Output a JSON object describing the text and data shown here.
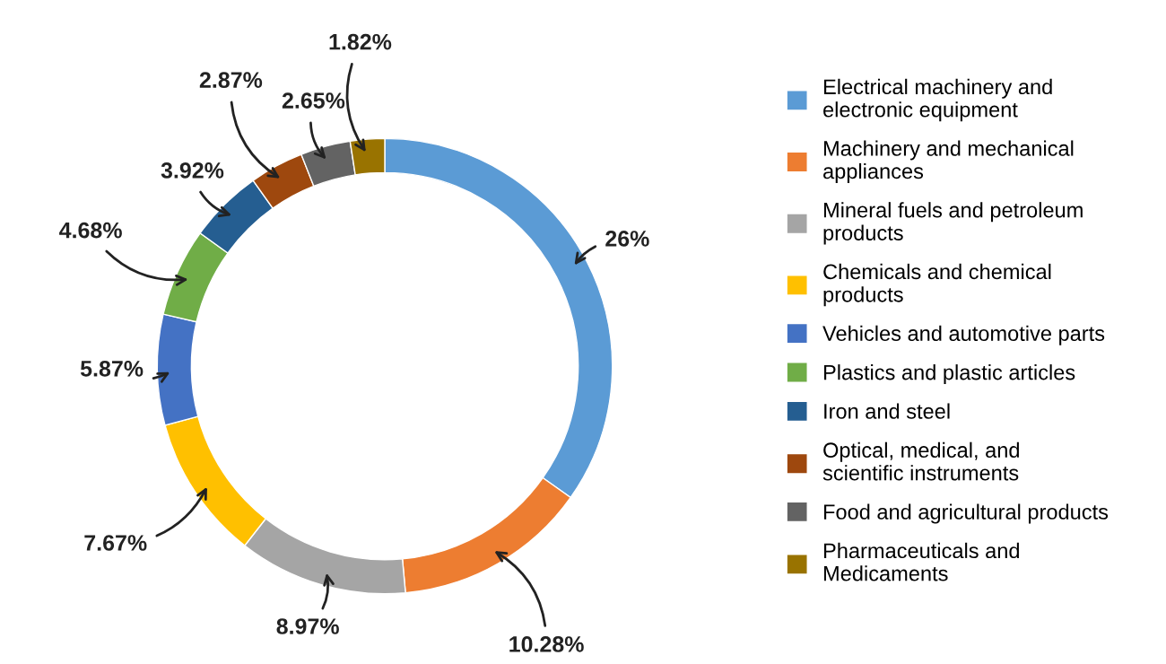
{
  "chart_data": {
    "type": "donut",
    "categories": [
      "Electrical machinery and electronic equipment",
      "Machinery and mechanical appliances",
      "Mineral fuels and petroleum products",
      "Chemicals and chemical products",
      "Vehicles and automotive parts",
      "Plastics and plastic articles",
      "Iron and steel",
      "Optical, medical, and scientific instruments",
      "Food and agricultural products",
      "Pharmaceuticals and Medicaments"
    ],
    "values": [
      26,
      10.28,
      8.97,
      7.67,
      5.87,
      4.68,
      3.92,
      2.87,
      2.65,
      1.82
    ],
    "value_labels": [
      "26%",
      "10.28%",
      "8.97%",
      "7.67%",
      "5.87%",
      "4.68%",
      "3.92%",
      "2.87%",
      "2.65%",
      "1.82%"
    ],
    "colors": [
      "#5b9bd5",
      "#ed7d31",
      "#a5a5a5",
      "#ffc000",
      "#4472c4",
      "#70ad47",
      "#255e91",
      "#9e480e",
      "#636363",
      "#997300"
    ],
    "legend": "right"
  }
}
